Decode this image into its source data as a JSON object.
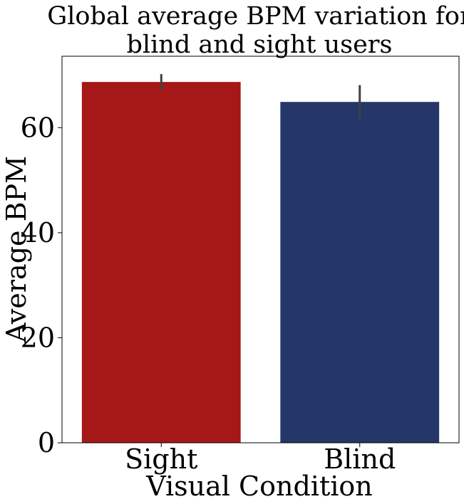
{
  "chart_data": {
    "type": "bar",
    "title_lines": [
      "Global average BPM variation for",
      "blind and sight users"
    ],
    "xlabel": "Visual Condition",
    "ylabel": "Average BPM",
    "categories": [
      "Sight",
      "Blind"
    ],
    "values": [
      68.7,
      64.9
    ],
    "error_bars": [
      {
        "low": 67.2,
        "high": 70.2
      },
      {
        "low": 61.7,
        "high": 68.1
      }
    ],
    "colors": [
      "#a51817",
      "#253769"
    ],
    "ylim": [
      0,
      73.6
    ],
    "yticks": [
      0,
      20,
      40,
      60
    ],
    "grid": false,
    "legend": "none"
  }
}
